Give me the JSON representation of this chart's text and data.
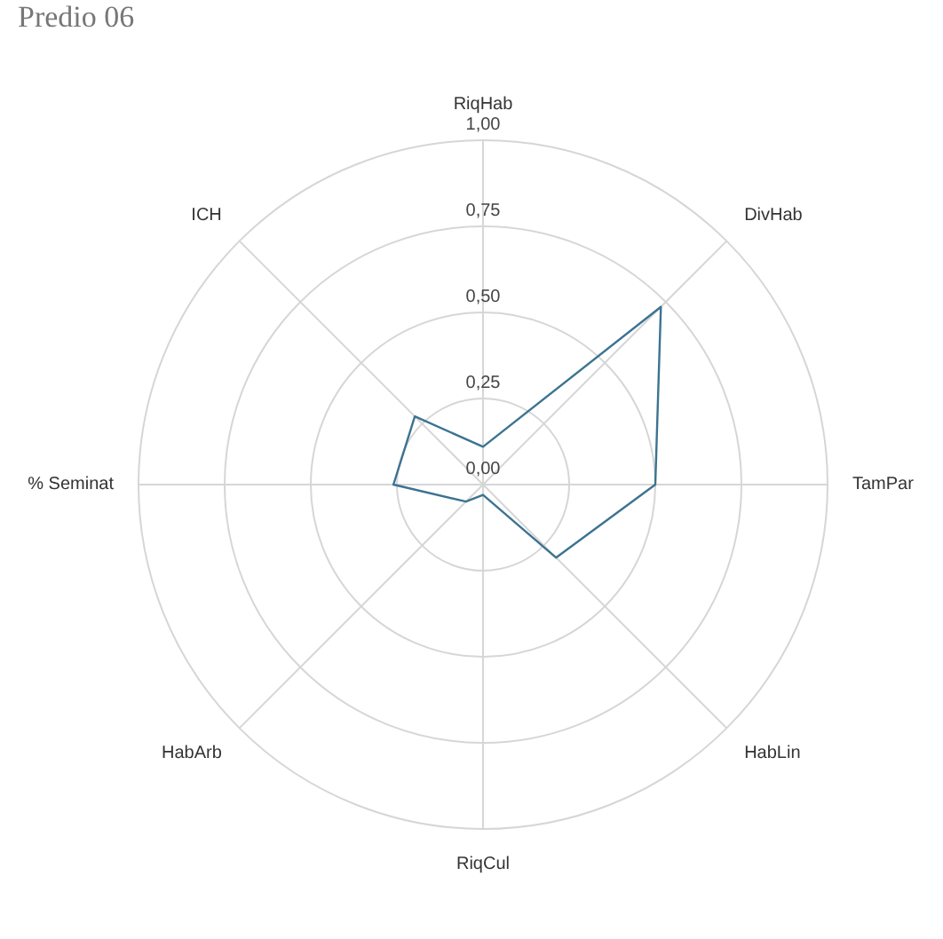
{
  "chart_data": {
    "type": "radar",
    "title": "Predio 06",
    "categories": [
      "RiqHab",
      "DivHab",
      "TamPar",
      "HabLin",
      "RiqCul",
      "HabArb",
      "% Seminat",
      "ICH"
    ],
    "series": [
      {
        "color": "#3b7391",
        "values": [
          0.11,
          0.73,
          0.5,
          0.3,
          0.03,
          0.07,
          0.26,
          0.28
        ]
      }
    ],
    "ylim": [
      0,
      1
    ],
    "yticks": [
      {
        "value": 0,
        "label": "0,00"
      },
      {
        "value": 0.25,
        "label": "0,25"
      },
      {
        "value": 0.5,
        "label": "0,50"
      },
      {
        "value": 0.75,
        "label": "0,75"
      },
      {
        "value": 1,
        "label": "1,00"
      }
    ],
    "grid": true,
    "legend": false
  }
}
